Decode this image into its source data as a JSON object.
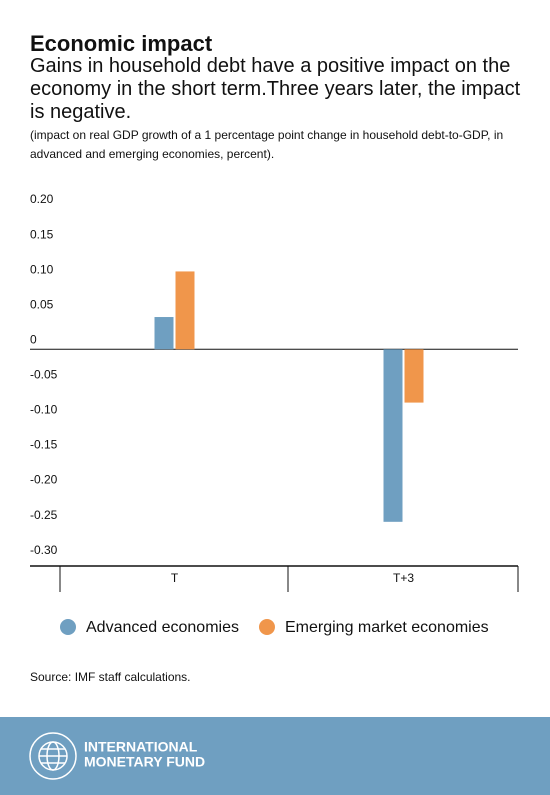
{
  "chart_data": {
    "type": "bar",
    "title": "Economic impact",
    "subtitle": "Gains in household debt have a positive impact on the economy in the short term.Three years later, the impact is negative.",
    "note": "(impact on real GDP growth of a 1 percentage point change in household debt-to-GDP, in advanced and emerging economies, percent).",
    "categories": [
      "T",
      "T+3"
    ],
    "series": [
      {
        "name": "Advanced economies",
        "color": "#6f9fc1",
        "values": [
          0.046,
          -0.246
        ]
      },
      {
        "name": "Emerging market economies",
        "color": "#f0964b",
        "values": [
          0.111,
          -0.076
        ]
      }
    ],
    "ylim": [
      -0.309,
      0.22
    ],
    "yticks": [
      {
        "value": 0.2,
        "label": "0.20"
      },
      0.15,
      {
        "value": 0.1,
        "label": "0.10"
      },
      0.05,
      0,
      -0.05,
      {
        "value": -0.1,
        "label": "-0.10"
      },
      -0.15,
      {
        "value": -0.2,
        "label": "-0.20"
      },
      -0.25,
      {
        "value": -0.3,
        "label": "-0.30"
      }
    ],
    "grid": false,
    "source": "Source: IMF staff calculations."
  },
  "footer": {
    "name_lines": [
      "INTERNATIONAL",
      "MONETARY FUND"
    ]
  }
}
